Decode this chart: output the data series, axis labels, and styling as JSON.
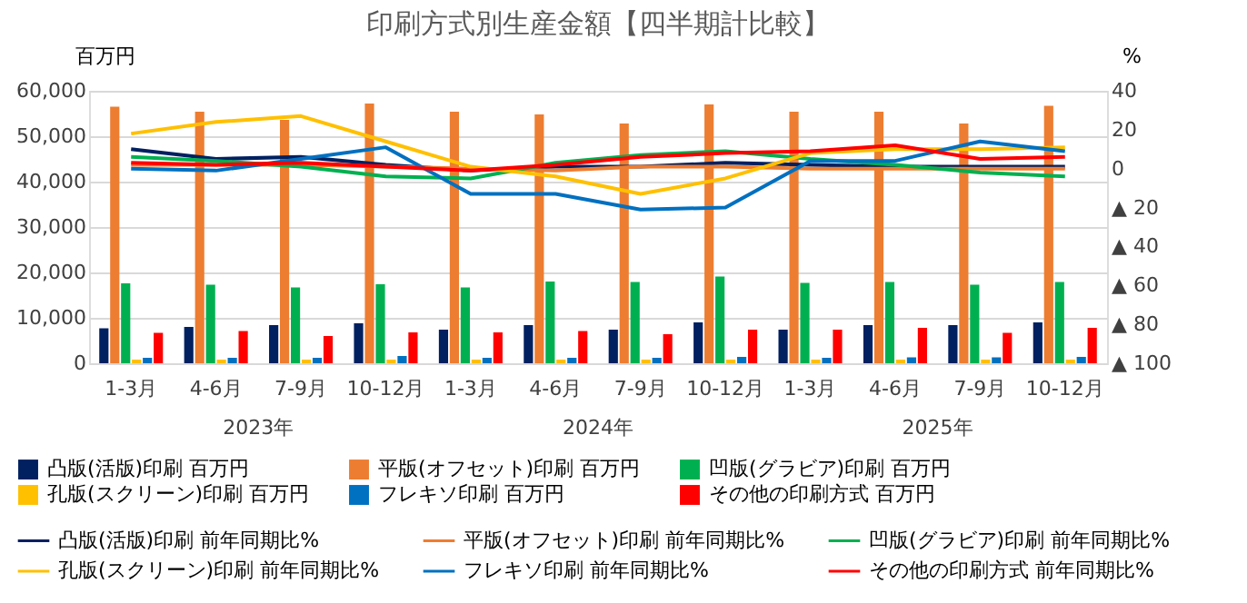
{
  "chart_data": {
    "type": "bar",
    "title": "印刷方式別生産金額【四半期計比較】",
    "ylabel": "百万円",
    "y2label": "%",
    "categories": [
      "1-3月",
      "4-6月",
      "7-9月",
      "10-12月",
      "1-3月",
      "4-6月",
      "7-9月",
      "10-12月",
      "1-3月",
      "4-6月",
      "7-9月",
      "10-12月"
    ],
    "annotations": [
      "2023年",
      "2024年",
      "2025年"
    ],
    "ylim": [
      0,
      60000
    ],
    "yticks": [
      {
        "value": 0,
        "label": "0"
      },
      {
        "value": 10000,
        "label": "10,000"
      },
      {
        "value": 20000,
        "label": "20,000"
      },
      {
        "value": 30000,
        "label": "30,000"
      },
      {
        "value": 40000,
        "label": "40,000"
      },
      {
        "value": 50000,
        "label": "50,000"
      },
      {
        "value": 60000,
        "label": "60,000"
      }
    ],
    "y2lim": [
      -100,
      40
    ],
    "y2ticks": [
      40,
      20,
      0,
      {
        "value": -20,
        "label": "▲ 20"
      },
      {
        "value": -40,
        "label": "▲ 40"
      },
      {
        "value": -60,
        "label": "▲ 60"
      },
      {
        "value": -80,
        "label": "▲ 80"
      },
      {
        "value": -100,
        "label": "▲ 100"
      }
    ],
    "grid": "y",
    "legend": "bottom",
    "series": [
      {
        "name": "凸版(活版)印刷 百万円",
        "color": "#002060",
        "values": [
          7700,
          8000,
          8400,
          8800,
          7400,
          8400,
          7400,
          9000,
          7400,
          8400,
          8400,
          9000
        ]
      },
      {
        "name": "平版(オフセット)印刷 百万円",
        "color": "#ed7d31",
        "values": [
          56500,
          55400,
          53600,
          57200,
          55400,
          54800,
          52800,
          57000,
          55400,
          55400,
          52800,
          56700
        ]
      },
      {
        "name": "凹版(グラビア)印刷 百万円",
        "color": "#00b050",
        "values": [
          17600,
          17300,
          16700,
          17400,
          16700,
          18000,
          17900,
          19100,
          17700,
          17900,
          17300,
          17900
        ]
      },
      {
        "name": "孔版(スクリーン)印刷 百万円",
        "color": "#ffc000",
        "values": [
          800,
          800,
          800,
          800,
          800,
          800,
          800,
          800,
          800,
          800,
          800,
          800
        ]
      },
      {
        "name": "フレキソ印刷 百万円",
        "color": "#0070c0",
        "values": [
          1200,
          1200,
          1200,
          1600,
          1200,
          1200,
          1200,
          1400,
          1200,
          1300,
          1300,
          1400
        ]
      },
      {
        "name": "その他の印刷方式 百万円",
        "color": "#ff0000",
        "values": [
          6700,
          7100,
          6000,
          6800,
          6800,
          7100,
          6400,
          7400,
          7400,
          7800,
          6700,
          7800
        ]
      },
      {
        "name": "凸版(活版)印刷 前年同期比%",
        "type": "line",
        "axis": "y2",
        "color": "#002060",
        "values": [
          10,
          5,
          6,
          2,
          -1,
          1,
          1,
          3,
          2,
          1,
          1,
          1
        ]
      },
      {
        "name": "平版(オフセット)印刷 前年同期比%",
        "type": "line",
        "axis": "y2",
        "color": "#ed7d31",
        "values": [
          2,
          2,
          2,
          1,
          0,
          -1,
          1,
          1,
          0,
          0,
          0,
          0
        ]
      },
      {
        "name": "凹版(グラビア)印刷 前年同期比%",
        "type": "line",
        "axis": "y2",
        "color": "#00b050",
        "values": [
          6,
          4,
          1,
          -4,
          -5,
          3,
          7,
          9,
          5,
          2,
          -2,
          -4
        ]
      },
      {
        "name": "孔版(スクリーン)印刷 前年同期比%",
        "type": "line",
        "axis": "y2",
        "color": "#ffc000",
        "values": [
          18,
          24,
          27,
          14,
          1,
          -4,
          -13,
          -5,
          8,
          10,
          10,
          11
        ]
      },
      {
        "name": "フレキソ印刷 前年同期比%",
        "type": "line",
        "axis": "y2",
        "color": "#0070c0",
        "values": [
          0,
          -1,
          5,
          11,
          -13,
          -13,
          -21,
          -20,
          4,
          4,
          14,
          9
        ]
      },
      {
        "name": "その他の印刷方式 前年同期比%",
        "type": "line",
        "axis": "y2",
        "color": "#ff0000",
        "values": [
          3,
          2,
          3,
          1,
          -1,
          2,
          6,
          8,
          9,
          12,
          5,
          6
        ]
      }
    ]
  }
}
